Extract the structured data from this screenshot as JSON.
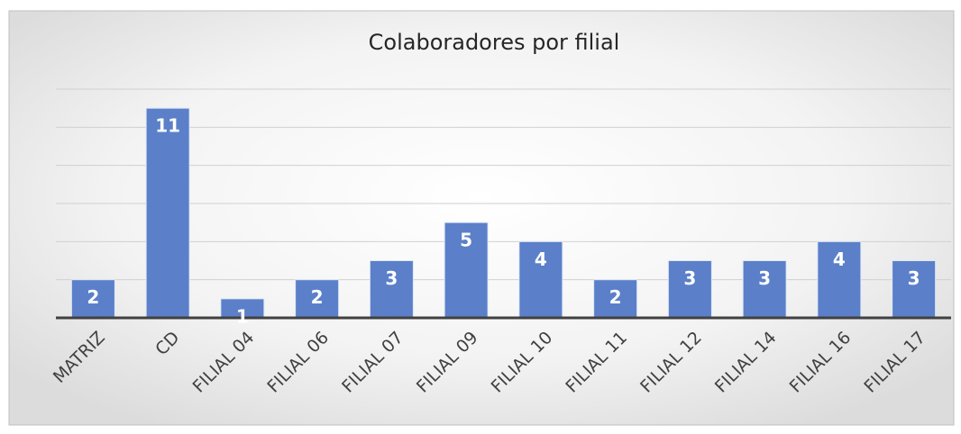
{
  "chart_data": {
    "type": "bar",
    "title": "Colaboradores por filial",
    "categories": [
      "MATRIZ",
      "CD",
      "FILIAL 04",
      "FILIAL 06",
      "FILIAL 07",
      "FILIAL 09",
      "FILIAL 10",
      "FILIAL 11",
      "FILIAL 12",
      "FILIAL 14",
      "FILIAL 16",
      "FILIAL 17"
    ],
    "values": [
      2,
      11,
      1,
      2,
      3,
      5,
      4,
      2,
      3,
      3,
      4,
      3
    ],
    "color": "#5b80c9",
    "ylim": [
      0,
      12
    ],
    "yticks": [
      0,
      2,
      4,
      6,
      8,
      10,
      12
    ],
    "grid": true
  }
}
